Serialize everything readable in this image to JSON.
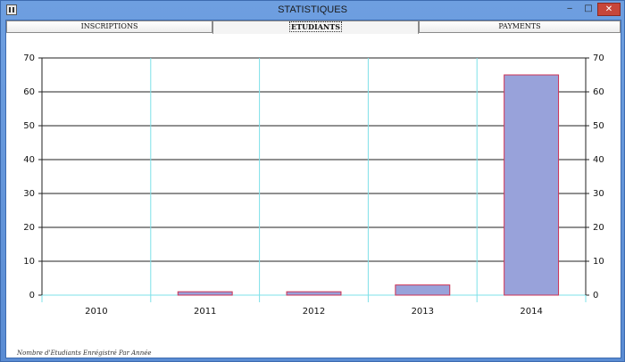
{
  "window": {
    "title": "STATISTIQUES",
    "minimize_glyph": "‒",
    "maximize_glyph": "□",
    "close_glyph": "✕"
  },
  "tabs": [
    {
      "label": "INSCRIPTIONS",
      "selected": false
    },
    {
      "label": "ETUDIANTS",
      "selected": true
    },
    {
      "label": "PAYMENTS",
      "selected": false
    }
  ],
  "chart_data": {
    "type": "bar",
    "categories": [
      "2010",
      "2011",
      "2012",
      "2013",
      "2014"
    ],
    "values": [
      0,
      1,
      1,
      3,
      65
    ],
    "ylim": [
      0,
      70
    ],
    "yticks": [
      0,
      10,
      20,
      30,
      40,
      50,
      60,
      70
    ],
    "grid": true,
    "right_axis": true,
    "bar_fill": "#98a2da",
    "bar_stroke": "#cc3355",
    "vgrid_color": "#7ee0e8",
    "hgrid_color": "#222222"
  },
  "footnote": "Nombre d'Etudiants Enrégistré Par Année"
}
